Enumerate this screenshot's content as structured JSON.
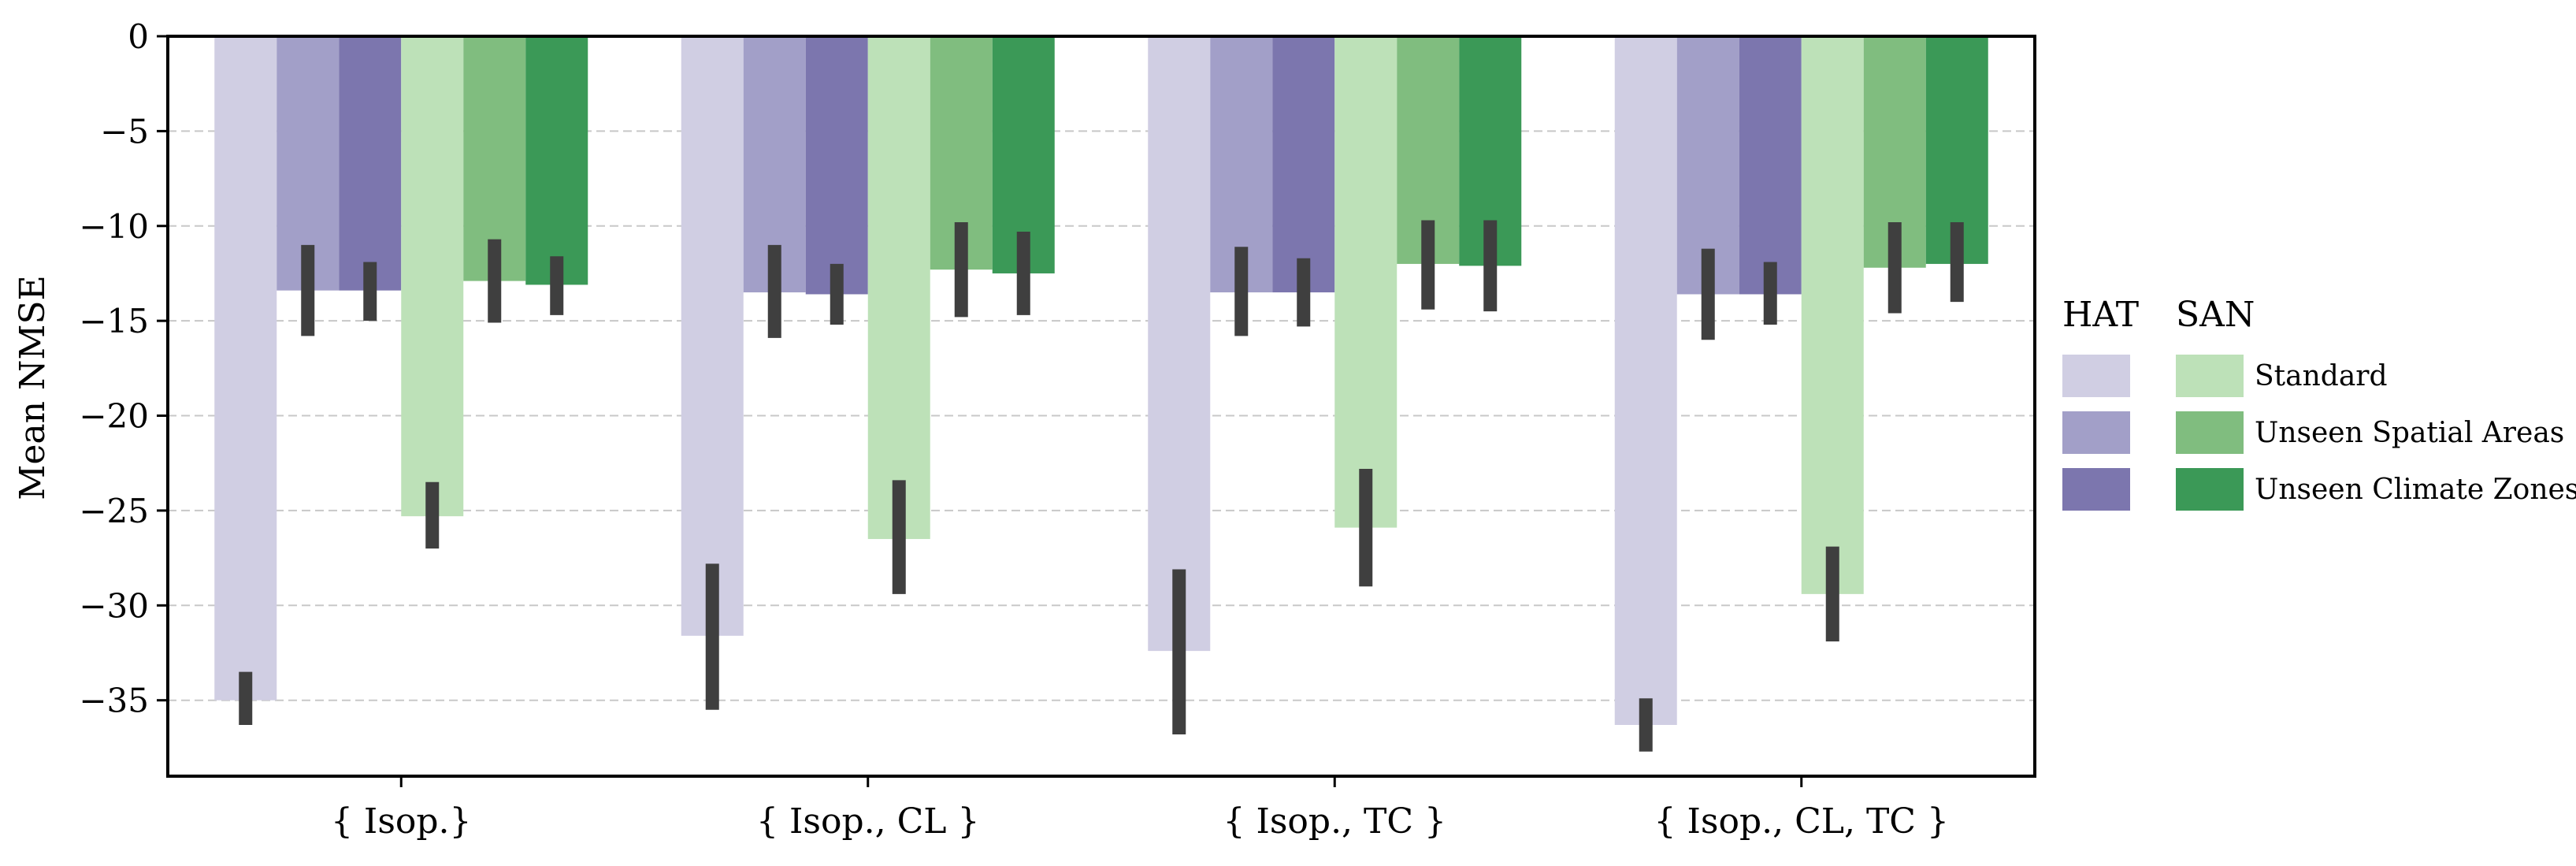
{
  "chart_data": {
    "type": "bar",
    "title": "",
    "xlabel": "",
    "ylabel": "Mean NMSE",
    "ylim": [
      -39,
      0
    ],
    "yticks": [
      0,
      -5,
      -10,
      -15,
      -20,
      -25,
      -30,
      -35
    ],
    "ytick_labels": [
      "0",
      "−5",
      "−10",
      "−15",
      "−20",
      "−25",
      "−30",
      "−35"
    ],
    "grid": "horizontal dashed",
    "categories": [
      "{ Isop.}",
      "{ Isop., CL }",
      "{ Isop., TC }",
      "{ Isop., CL, TC }"
    ],
    "legend": {
      "placement": "right",
      "columns": [
        {
          "title": "HAT",
          "entries": [
            "",
            "",
            ""
          ]
        },
        {
          "title": "SAN",
          "entries": [
            "Standard",
            "Unseen Spatial Areas",
            "Unseen Climate Zones"
          ]
        }
      ]
    },
    "series": [
      {
        "name": "HAT Standard",
        "model": "HAT",
        "setting": "Standard",
        "color": "#d0cee3",
        "values": [
          -35.0,
          -31.6,
          -32.4,
          -36.3
        ],
        "error_low": [
          -36.3,
          -35.5,
          -36.8,
          -37.7
        ],
        "error_high": [
          -33.5,
          -27.8,
          -28.1,
          -34.9
        ]
      },
      {
        "name": "HAT Unseen Spatial Areas",
        "model": "HAT",
        "setting": "Unseen Spatial Areas",
        "color": "#a29fc8",
        "values": [
          -13.4,
          -13.5,
          -13.5,
          -13.6
        ],
        "error_low": [
          -15.8,
          -15.9,
          -15.8,
          -16.0
        ],
        "error_high": [
          -11.0,
          -11.0,
          -11.1,
          -11.2
        ]
      },
      {
        "name": "HAT Unseen Climate Zones",
        "model": "HAT",
        "setting": "Unseen Climate Zones",
        "color": "#7c76ae",
        "values": [
          -13.4,
          -13.6,
          -13.5,
          -13.6
        ],
        "error_low": [
          -15.0,
          -15.2,
          -15.3,
          -15.2
        ],
        "error_high": [
          -11.9,
          -12.0,
          -11.7,
          -11.9
        ]
      },
      {
        "name": "SAN Standard",
        "model": "SAN",
        "setting": "Standard",
        "color": "#bde1b8",
        "values": [
          -25.3,
          -26.5,
          -25.9,
          -29.4
        ],
        "error_low": [
          -27.0,
          -29.4,
          -29.0,
          -31.9
        ],
        "error_high": [
          -23.5,
          -23.4,
          -22.8,
          -26.9
        ]
      },
      {
        "name": "SAN Unseen Spatial Areas",
        "model": "SAN",
        "setting": "Unseen Spatial Areas",
        "color": "#80bd7f",
        "values": [
          -12.9,
          -12.3,
          -12.0,
          -12.2
        ],
        "error_low": [
          -15.1,
          -14.8,
          -14.4,
          -14.6
        ],
        "error_high": [
          -10.7,
          -9.8,
          -9.7,
          -9.8
        ]
      },
      {
        "name": "SAN Unseen Climate Zones",
        "model": "SAN",
        "setting": "Unseen Climate Zones",
        "color": "#3b9957",
        "values": [
          -13.1,
          -12.5,
          -12.1,
          -12.0
        ],
        "error_low": [
          -14.7,
          -14.7,
          -14.5,
          -14.0
        ],
        "error_high": [
          -11.6,
          -10.3,
          -9.7,
          -9.8
        ]
      }
    ],
    "errorbar_color": "#3f3f3f"
  }
}
